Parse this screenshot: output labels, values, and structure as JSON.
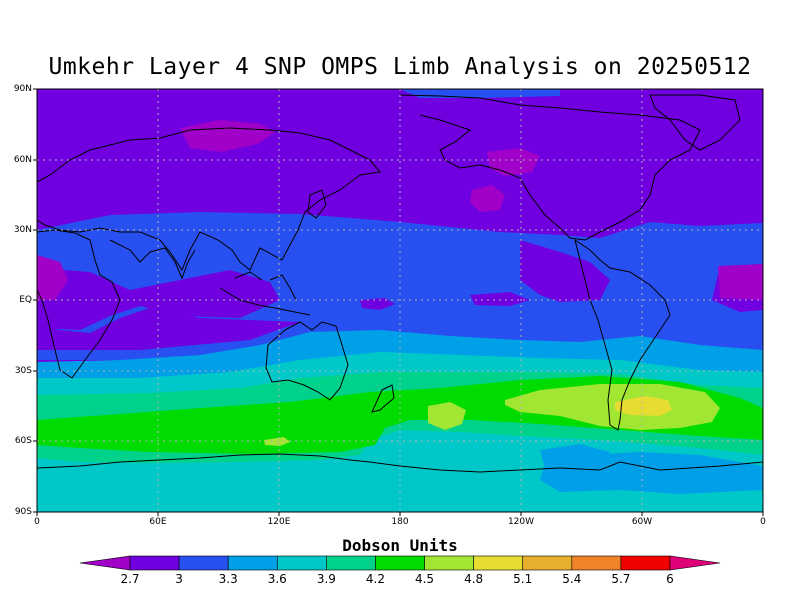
{
  "title": "Umkehr Layer 4 SNP OMPS Limb Analysis on 20250512",
  "map": {
    "lat_labels": [
      "90N",
      "60N",
      "30N",
      "EQ",
      "30S",
      "60S",
      "90S"
    ],
    "lon_labels": [
      "0",
      "60E",
      "120E",
      "180",
      "120W",
      "60W",
      "0"
    ],
    "gridlines": true
  },
  "colorbar": {
    "title": "Dobson Units",
    "ticks": [
      "2.7",
      "3",
      "3.3",
      "3.6",
      "3.9",
      "4.2",
      "4.5",
      "4.8",
      "5.1",
      "5.4",
      "5.7",
      "6"
    ],
    "colors": [
      "#a000c8",
      "#7000e0",
      "#2850f0",
      "#00a0e8",
      "#00c8c8",
      "#00d28c",
      "#00dc00",
      "#a0e632",
      "#e6dc32",
      "#e6af2d",
      "#f08228",
      "#f00000",
      "#e0007a"
    ]
  },
  "field_colors": {
    "c1": "#a000c8",
    "c2": "#7000e0",
    "c3": "#2850f0",
    "c4": "#00a0e8",
    "c5": "#00c8c8",
    "c6": "#00d28c",
    "c7": "#00dc00",
    "c8": "#a0e632",
    "c9": "#e6dc32"
  }
}
